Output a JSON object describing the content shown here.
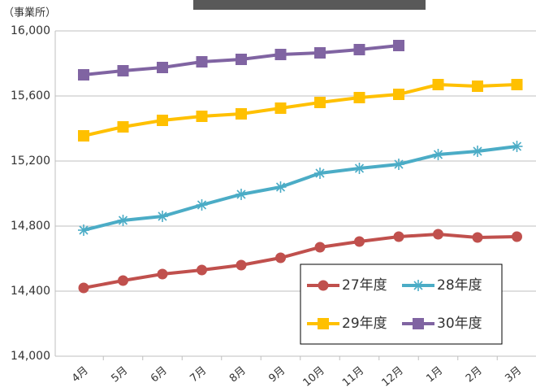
{
  "chart_data": {
    "type": "line",
    "y_unit_label": "（事業所）",
    "categories": [
      "4月",
      "5月",
      "6月",
      "7月",
      "8月",
      "9月",
      "10月",
      "11月",
      "12月",
      "1月",
      "2月",
      "3月"
    ],
    "series": [
      {
        "name": "27年度",
        "color": "#c0504d",
        "marker": "circle",
        "values": [
          14420,
          14465,
          14505,
          14530,
          14560,
          14605,
          14670,
          14705,
          14735,
          14750,
          14730,
          14735
        ]
      },
      {
        "name": "28年度",
        "color": "#4bacc6",
        "marker": "asterisk",
        "values": [
          14775,
          14835,
          14860,
          14930,
          14995,
          15040,
          15125,
          15155,
          15180,
          15240,
          15260,
          15290
        ]
      },
      {
        "name": "29年度",
        "color": "#ffc000",
        "marker": "square",
        "values": [
          15355,
          15410,
          15450,
          15475,
          15490,
          15525,
          15560,
          15590,
          15610,
          15670,
          15660,
          15670
        ]
      },
      {
        "name": "30年度",
        "color": "#8064a2",
        "marker": "square",
        "values": [
          15730,
          15755,
          15775,
          15810,
          15825,
          15855,
          15865,
          15885,
          15910,
          null,
          null,
          null
        ]
      }
    ],
    "ylim": [
      14000,
      16000
    ],
    "yticks": [
      {
        "value": 14000,
        "label": "14,000"
      },
      {
        "value": 14400,
        "label": "14,400"
      },
      {
        "value": 14800,
        "label": "14,800"
      },
      {
        "value": 15200,
        "label": "15,200"
      },
      {
        "value": 15600,
        "label": "15,600"
      },
      {
        "value": 16000,
        "label": "16,000"
      }
    ],
    "grid": true
  }
}
